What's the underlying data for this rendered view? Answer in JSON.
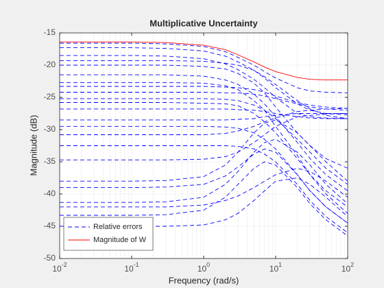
{
  "chart_data": {
    "type": "line",
    "title": "Multiplicative Uncertainty",
    "xlabel": "Frequency  (rad/s)",
    "ylabel": "Magnitude (dB)",
    "xscale": "log",
    "grid": true,
    "minor_grid": true,
    "legend": "southwest",
    "xlim": [
      0.01,
      100
    ],
    "ylim": [
      -50,
      -15
    ],
    "xticks": [
      {
        "value": 0.01,
        "label": "10^-2"
      },
      {
        "value": 0.1,
        "label": "10^-1"
      },
      {
        "value": 1,
        "label": "10^0"
      },
      {
        "value": 10,
        "label": "10^1"
      },
      {
        "value": 100,
        "label": "10^2"
      }
    ],
    "yticks": [
      -50,
      -45,
      -40,
      -35,
      -30,
      -25,
      -20,
      -15
    ],
    "x": [
      0.01,
      0.1,
      0.3,
      1,
      2,
      3,
      5,
      7,
      10,
      20,
      30,
      50,
      100
    ],
    "series": [
      {
        "name": "Relative errors",
        "color": "#0000ff",
        "dashed": true,
        "values": [
          -16.6,
          -16.6,
          -16.7,
          -17.1,
          -17.9,
          -18.8,
          -20.0,
          -21.0,
          -22.0,
          -23.5,
          -24.0,
          -24.2,
          -24.3
        ]
      },
      {
        "color": "#0000ff",
        "dashed": true,
        "values": [
          -17.3,
          -17.3,
          -17.4,
          -17.8,
          -18.6,
          -19.5,
          -20.8,
          -22.0,
          -23.5,
          -26.0,
          -27.0,
          -27.5,
          -27.7
        ]
      },
      {
        "color": "#0000ff",
        "dashed": true,
        "values": [
          -18.5,
          -18.5,
          -18.6,
          -19.0,
          -19.8,
          -20.7,
          -22.2,
          -23.5,
          -25.0,
          -27.5,
          -28.0,
          -28.2,
          -28.3
        ]
      },
      {
        "color": "#0000ff",
        "dashed": true,
        "values": [
          -19.3,
          -19.3,
          -19.3,
          -19.4,
          -19.7,
          -20.0,
          -20.8,
          -21.8,
          -23.0,
          -25.5,
          -26.8,
          -27.8,
          -28.3
        ]
      },
      {
        "color": "#0000ff",
        "dashed": true,
        "values": [
          -20.0,
          -20.0,
          -20.0,
          -20.2,
          -20.6,
          -21.3,
          -22.8,
          -24.3,
          -26.5,
          -30.5,
          -32.5,
          -34.5,
          -36.0
        ]
      },
      {
        "color": "#0000ff",
        "dashed": true,
        "values": [
          -21.5,
          -21.5,
          -21.5,
          -21.7,
          -22.3,
          -23.0,
          -24.5,
          -26.0,
          -28.0,
          -32.0,
          -34.5,
          -37.0,
          -39.5
        ]
      },
      {
        "color": "#0000ff",
        "dashed": true,
        "values": [
          -22.7,
          -22.7,
          -22.7,
          -22.8,
          -23.2,
          -23.8,
          -25.5,
          -27.0,
          -29.5,
          -34.0,
          -37.0,
          -40.0,
          -43.0
        ]
      },
      {
        "color": "#0000ff",
        "dashed": true,
        "values": [
          -23.3,
          -23.3,
          -23.3,
          -23.3,
          -23.4,
          -23.5,
          -23.8,
          -24.2,
          -24.8,
          -25.8,
          -26.2,
          -26.5,
          -26.7
        ]
      },
      {
        "color": "#0000ff",
        "dashed": true,
        "values": [
          -24.2,
          -24.2,
          -24.2,
          -24.2,
          -24.3,
          -24.3,
          -24.5,
          -24.8,
          -25.2,
          -26.0,
          -26.5,
          -26.8,
          -27.0
        ]
      },
      {
        "color": "#0000ff",
        "dashed": true,
        "values": [
          -25.2,
          -25.2,
          -25.2,
          -25.2,
          -25.3,
          -25.5,
          -26.2,
          -27.0,
          -28.3,
          -31.5,
          -33.5,
          -36.0,
          -38.5
        ]
      },
      {
        "color": "#0000ff",
        "dashed": true,
        "values": [
          -25.8,
          -25.8,
          -25.8,
          -25.9,
          -26.0,
          -26.3,
          -27.5,
          -28.8,
          -30.5,
          -34.5,
          -37.0,
          -39.5,
          -42.0
        ]
      },
      {
        "color": "#0000ff",
        "dashed": true,
        "values": [
          -26.8,
          -26.8,
          -26.8,
          -26.8,
          -26.8,
          -26.9,
          -27.0,
          -27.2,
          -27.5,
          -28.0,
          -28.2,
          -28.3,
          -28.3
        ]
      },
      {
        "color": "#0000ff",
        "dashed": true,
        "values": [
          -28.5,
          -28.5,
          -28.5,
          -28.5,
          -28.5,
          -28.4,
          -28.3,
          -28.0,
          -27.8,
          -27.5,
          -27.5,
          -27.5,
          -27.5
        ]
      },
      {
        "color": "#0000ff",
        "dashed": true,
        "values": [
          -29.5,
          -29.5,
          -29.5,
          -29.5,
          -29.6,
          -29.8,
          -30.5,
          -31.5,
          -33.0,
          -37.0,
          -39.5,
          -42.0,
          -44.5
        ]
      },
      {
        "color": "#0000ff",
        "dashed": true,
        "values": [
          -30.8,
          -30.8,
          -30.8,
          -30.8,
          -30.6,
          -30.2,
          -29.5,
          -28.8,
          -28.2,
          -27.2,
          -27.0,
          -26.8,
          -26.7
        ]
      },
      {
        "color": "#0000ff",
        "dashed": true,
        "values": [
          -32.5,
          -32.5,
          -32.5,
          -32.5,
          -32.5,
          -32.6,
          -33.0,
          -33.8,
          -35.0,
          -38.5,
          -41.0,
          -43.5,
          -46.0
        ]
      },
      {
        "color": "#0000ff",
        "dashed": true,
        "values": [
          -34.7,
          -34.7,
          -34.7,
          -34.6,
          -34.2,
          -33.5,
          -32.0,
          -30.8,
          -29.5,
          -28.0,
          -27.8,
          -27.6,
          -27.5
        ]
      },
      {
        "color": "#0000ff",
        "dashed": true,
        "values": [
          -38.0,
          -38.0,
          -37.9,
          -37.3,
          -35.5,
          -33.5,
          -30.5,
          -29.0,
          -28.5,
          -30.5,
          -32.5,
          -35.0,
          -38.0
        ]
      },
      {
        "color": "#0000ff",
        "dashed": true,
        "values": [
          -39.0,
          -39.0,
          -38.9,
          -38.5,
          -37.2,
          -35.8,
          -33.8,
          -33.0,
          -33.5,
          -37.0,
          -39.5,
          -42.0,
          -44.5
        ]
      },
      {
        "color": "#0000ff",
        "dashed": true,
        "values": [
          -41.3,
          -41.3,
          -41.2,
          -40.5,
          -38.5,
          -36.5,
          -33.5,
          -32.0,
          -31.5,
          -33.5,
          -35.5,
          -38.5,
          -41.5
        ]
      },
      {
        "color": "#0000ff",
        "dashed": true,
        "values": [
          -42.0,
          -42.0,
          -42.0,
          -41.7,
          -41.0,
          -40.3,
          -39.0,
          -38.0,
          -37.0,
          -36.0,
          -36.5,
          -38.0,
          -40.5
        ]
      },
      {
        "color": "#0000ff",
        "dashed": true,
        "values": [
          -43.3,
          -43.3,
          -43.2,
          -42.5,
          -40.5,
          -38.5,
          -36.0,
          -35.0,
          -35.5,
          -39.0,
          -41.5,
          -44.0,
          -46.5
        ]
      },
      {
        "color": "#0000ff",
        "dashed": true,
        "values": [
          -45.0,
          -45.0,
          -45.0,
          -44.8,
          -44.0,
          -43.0,
          -41.0,
          -39.5,
          -38.0,
          -37.5,
          -38.5,
          -40.5,
          -43.5
        ]
      },
      {
        "name": "Magnitude of W",
        "color": "#ff0000",
        "dashed": false,
        "values": [
          -16.4,
          -16.4,
          -16.5,
          -16.9,
          -17.6,
          -18.4,
          -19.5,
          -20.3,
          -21.0,
          -21.9,
          -22.2,
          -22.3,
          -22.3
        ]
      }
    ]
  }
}
